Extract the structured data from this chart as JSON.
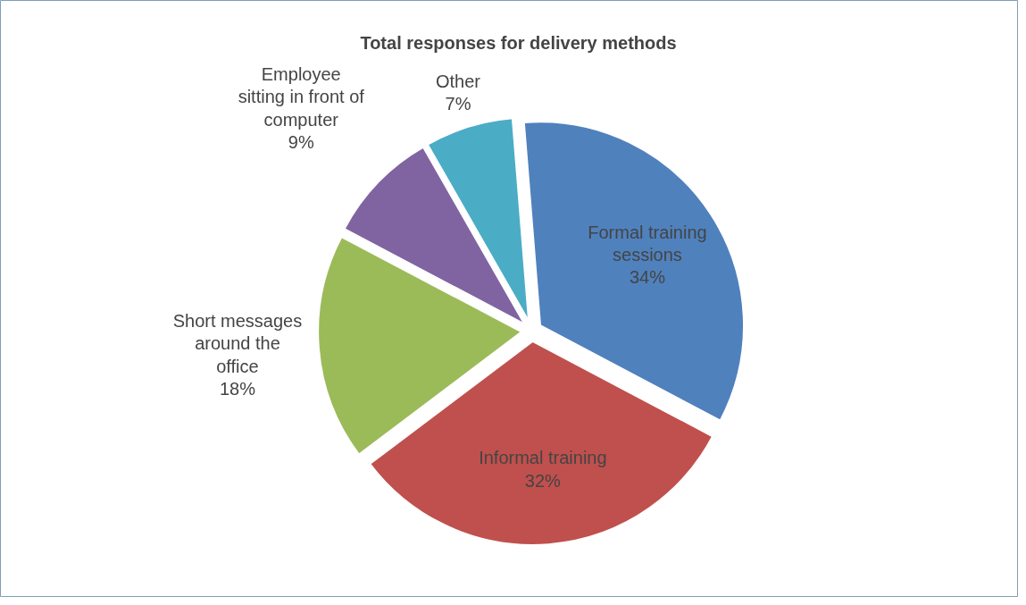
{
  "chart_data": {
    "type": "pie",
    "title": "Total responses for delivery methods",
    "categories": [
      "Formal training\nsessions",
      "Informal training",
      "Short messages\naround the\noffice",
      "Employee\nsitting in front of\ncomputer",
      "Other"
    ],
    "values": [
      34,
      32,
      18,
      9,
      7
    ],
    "value_labels": [
      "34%",
      "32%",
      "18%",
      "9%",
      "7%"
    ],
    "colors": [
      "#4f81bd",
      "#c0504d",
      "#9bbb59",
      "#8064a2",
      "#4bacc6"
    ]
  }
}
